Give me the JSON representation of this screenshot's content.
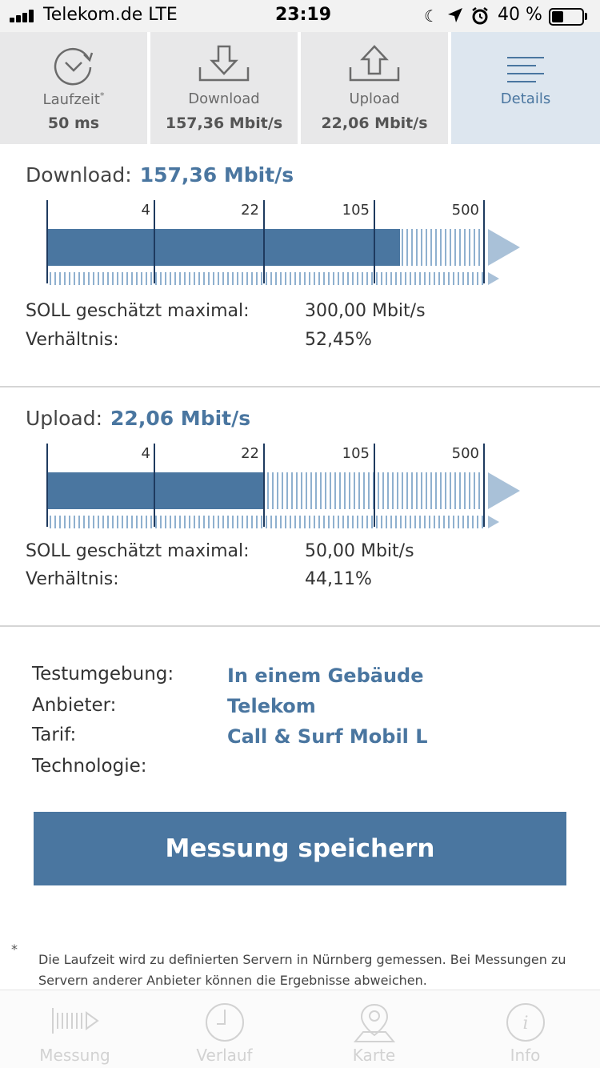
{
  "status_bar": {
    "carrier": "Telekom.de  LTE",
    "time": "23:19",
    "battery_pct": "40 %",
    "battery_level": 0.4
  },
  "tabs": [
    {
      "label": "Laufzeit",
      "sup": "*",
      "value": "50 ms",
      "icon": "timer-icon"
    },
    {
      "label": "Download",
      "value": "157,36 Mbit/s",
      "icon": "download-icon"
    },
    {
      "label": "Upload",
      "value": "22,06 Mbit/s",
      "icon": "upload-icon"
    },
    {
      "label": "Details",
      "value": "",
      "icon": "list-icon",
      "active": true
    }
  ],
  "download": {
    "title": "Download:",
    "speed": "157,36 Mbit/s",
    "ticks": [
      "4",
      "22",
      "105",
      "500"
    ],
    "bar_fill": 0.81,
    "soll_label": "SOLL geschätzt maximal:",
    "soll_value": "300,00 Mbit/s",
    "ratio_label": "Verhältnis:",
    "ratio_value": "52,45%"
  },
  "upload": {
    "title": "Upload:",
    "speed": "22,06 Mbit/s",
    "ticks": [
      "4",
      "22",
      "105",
      "500"
    ],
    "bar_fill": 0.5,
    "soll_label": "SOLL geschätzt maximal:",
    "soll_value": "50,00 Mbit/s",
    "ratio_label": "Verhältnis:",
    "ratio_value": "44,11%"
  },
  "info": {
    "environment_label": "Testumgebung:",
    "environment_value": "In einem Gebäude",
    "provider_label": "Anbieter:",
    "provider_value": "Telekom",
    "tariff_label": "Tarif:",
    "tariff_value": "Call & Surf Mobil L",
    "technology_label": "Technologie:",
    "technology_value": ""
  },
  "save_button": "Messung speichern",
  "footnote_star": "*",
  "footnote": "Die Laufzeit wird zu definierten Servern in Nürnberg gemessen. Bei Messungen zu Servern anderer Anbieter können die Ergebnisse abweichen.",
  "bottom_nav": [
    {
      "label": "Messung",
      "icon": "measure-icon"
    },
    {
      "label": "Verlauf",
      "icon": "clock-icon"
    },
    {
      "label": "Karte",
      "icon": "map-pin-icon"
    },
    {
      "label": "Info",
      "icon": "info-icon"
    }
  ],
  "colors": {
    "accent": "#4a76a0",
    "tab_bg": "#e8e8e9",
    "tab_active_bg": "#dde6ef"
  }
}
